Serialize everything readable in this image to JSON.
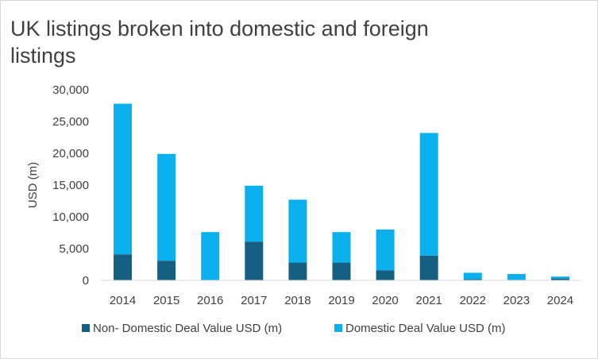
{
  "chart_data": {
    "type": "bar",
    "stacked": true,
    "title": "UK listings broken into domestic and foreign listings",
    "xlabel": "",
    "ylabel": "USD (m)",
    "ylim": [
      0,
      30000
    ],
    "yticks": [
      0,
      5000,
      10000,
      15000,
      20000,
      25000,
      30000
    ],
    "ytick_labels": [
      "0",
      "5,000",
      "10,000",
      "15,000",
      "20,000",
      "25,000",
      "30,000"
    ],
    "categories": [
      "2014",
      "2015",
      "2016",
      "2017",
      "2018",
      "2019",
      "2020",
      "2021",
      "2022",
      "2023",
      "2024"
    ],
    "series": [
      {
        "name": "Non- Domestic Deal Value USD (m)",
        "color": "#156082",
        "values": [
          4100,
          3100,
          0,
          6100,
          2800,
          2800,
          1600,
          3900,
          200,
          100,
          300
        ]
      },
      {
        "name": "Domestic Deal Value USD (m)",
        "color": "#0BB0EE",
        "values": [
          23700,
          16800,
          7600,
          8800,
          9900,
          4800,
          6400,
          19300,
          1000,
          900,
          300
        ]
      }
    ],
    "grid": false,
    "legend": "bottom"
  }
}
